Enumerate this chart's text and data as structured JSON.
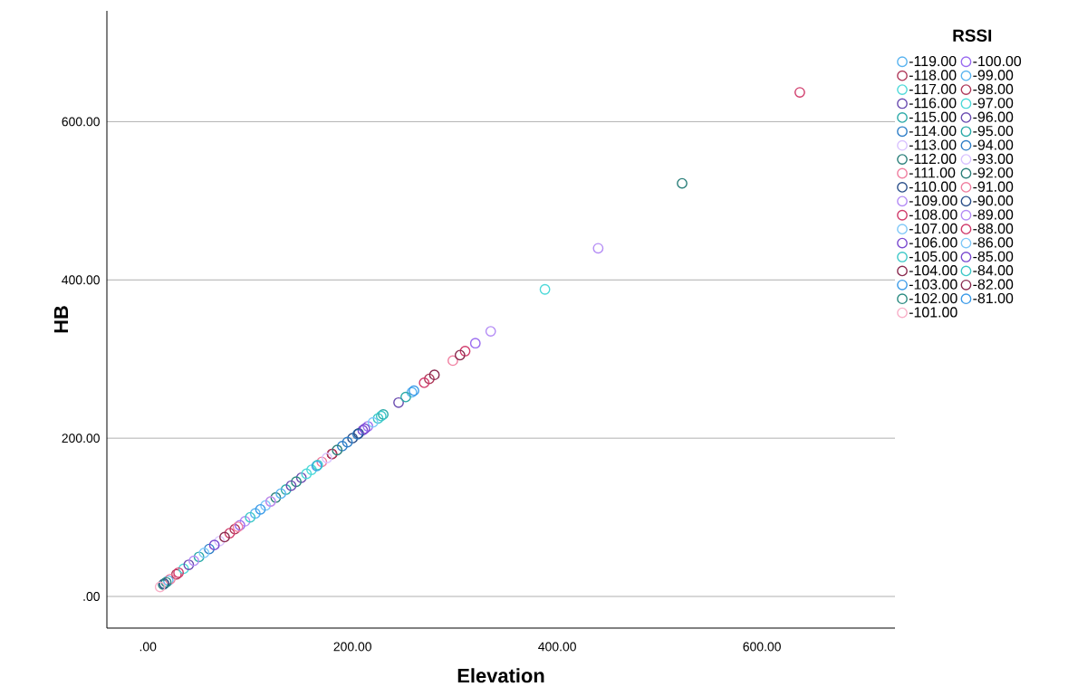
{
  "chart_data": {
    "type": "scatter",
    "xlabel": "Elevation",
    "ylabel": "HB",
    "legend_title": "RSSI",
    "xlim": [
      -40,
      730
    ],
    "ylim": [
      -40,
      740
    ],
    "xticks": [
      {
        "value": 0,
        "label": ".00"
      },
      {
        "value": 200,
        "label": "200.00"
      },
      {
        "value": 400,
        "label": "400.00"
      },
      {
        "value": 600,
        "label": "600.00"
      }
    ],
    "yticks": [
      {
        "value": 0,
        "label": ".00"
      },
      {
        "value": 200,
        "label": "200.00"
      },
      {
        "value": 400,
        "label": "400.00"
      },
      {
        "value": 600,
        "label": "600.00"
      }
    ],
    "grid": "y",
    "legend": "right",
    "marker": "circle",
    "series": [
      {
        "name": "-119.00",
        "color": "#5ab4f0",
        "x": [
          20,
          105
        ],
        "values": [
          20,
          105
        ]
      },
      {
        "name": "-118.00",
        "color": "#b03a5b",
        "x": [
          28,
          85
        ],
        "values": [
          28,
          85
        ]
      },
      {
        "name": "-117.00",
        "color": "#4dd9d9",
        "x": [
          35,
          160
        ],
        "values": [
          35,
          160
        ]
      },
      {
        "name": "-116.00",
        "color": "#6a4cb0",
        "x": [
          40,
          150
        ],
        "values": [
          40,
          150
        ]
      },
      {
        "name": "-115.00",
        "color": "#2aaaa8",
        "x": [
          50,
          135
        ],
        "values": [
          50,
          135
        ]
      },
      {
        "name": "-114.00",
        "color": "#2f7fc8",
        "x": [
          60,
          190
        ],
        "values": [
          60,
          190
        ]
      },
      {
        "name": "-113.00",
        "color": "#d9c2ff",
        "x": [
          70
        ],
        "values": [
          70
        ]
      },
      {
        "name": "-112.00",
        "color": "#2a7f7a",
        "x": [
          15,
          125
        ],
        "values": [
          15,
          125
        ]
      },
      {
        "name": "-111.00",
        "color": "#f07fa0",
        "x": [
          22,
          170
        ],
        "values": [
          22,
          170
        ]
      },
      {
        "name": "-110.00",
        "color": "#2a4f8a",
        "x": [
          16,
          200
        ],
        "values": [
          16,
          200
        ]
      },
      {
        "name": "-109.00",
        "color": "#b48cf5",
        "x": [
          45,
          95
        ],
        "values": [
          45,
          95
        ]
      },
      {
        "name": "-108.00",
        "color": "#d03a6a",
        "x": [
          30,
          80
        ],
        "values": [
          30,
          80
        ]
      },
      {
        "name": "-107.00",
        "color": "#7fc8f8",
        "x": [
          55,
          115
        ],
        "values": [
          55,
          115
        ]
      },
      {
        "name": "-106.00",
        "color": "#7a4ad0",
        "x": [
          65,
          210
        ],
        "values": [
          65,
          210
        ]
      },
      {
        "name": "-105.00",
        "color": "#3cc8c8",
        "x": [
          100,
          225
        ],
        "values": [
          100,
          225
        ]
      },
      {
        "name": "-104.00",
        "color": "#8a2a4f",
        "x": [
          75,
          180
        ],
        "values": [
          75,
          180
        ]
      },
      {
        "name": "-103.00",
        "color": "#3a9ae8",
        "x": [
          110,
          165
        ],
        "values": [
          110,
          165
        ]
      },
      {
        "name": "-102.00",
        "color": "#2a8a80",
        "x": [
          18,
          145
        ],
        "values": [
          18,
          145
        ]
      },
      {
        "name": "-101.00",
        "color": "#f8b0c8",
        "x": [
          12,
          120
        ],
        "values": [
          12,
          120
        ]
      },
      {
        "name": "-100.00",
        "color": "#9a6cf0",
        "x": [
          90,
          215,
          320
        ],
        "values": [
          90,
          215,
          320
        ]
      },
      {
        "name": "-99.00",
        "color": "#5ab4f0",
        "x": [
          130,
          258
        ],
        "values": [
          130,
          258
        ]
      },
      {
        "name": "-98.00",
        "color": "#b03a5b",
        "x": [
          180,
          275
        ],
        "values": [
          180,
          275
        ]
      },
      {
        "name": "-97.00",
        "color": "#4dd9d9",
        "x": [
          155,
          388
        ],
        "values": [
          155,
          388
        ]
      },
      {
        "name": "-96.00",
        "color": "#6a4cb0",
        "x": [
          140,
          245
        ],
        "values": [
          140,
          245
        ]
      },
      {
        "name": "-95.00",
        "color": "#2aaaa8",
        "x": [
          230,
          252
        ],
        "values": [
          230,
          252
        ]
      },
      {
        "name": "-94.00",
        "color": "#2f7fc8",
        "x": [
          195,
          205
        ],
        "values": [
          195,
          205
        ]
      },
      {
        "name": "-93.00",
        "color": "#d9c2ff",
        "x": [
          175
        ],
        "values": [
          175
        ]
      },
      {
        "name": "-92.00",
        "color": "#2a7f7a",
        "x": [
          185,
          522
        ],
        "values": [
          185,
          522
        ]
      },
      {
        "name": "-91.00",
        "color": "#f07fa0",
        "x": [
          88,
          298
        ],
        "values": [
          88,
          298
        ]
      },
      {
        "name": "-90.00",
        "color": "#2a4f8a",
        "x": [
          206
        ],
        "values": [
          206
        ]
      },
      {
        "name": "-89.00",
        "color": "#b48cf5",
        "x": [
          120,
          335,
          440
        ],
        "values": [
          120,
          335,
          440
        ]
      },
      {
        "name": "-88.00",
        "color": "#d03a6a",
        "x": [
          270,
          310,
          637
        ],
        "values": [
          270,
          310,
          637
        ]
      },
      {
        "name": "-86.00",
        "color": "#7fc8f8",
        "x": [
          220
        ],
        "values": [
          220
        ]
      },
      {
        "name": "-85.00",
        "color": "#7a4ad0",
        "x": [
          212
        ],
        "values": [
          212
        ]
      },
      {
        "name": "-84.00",
        "color": "#3cc8c8",
        "x": [
          166,
          228
        ],
        "values": [
          166,
          228
        ]
      },
      {
        "name": "-82.00",
        "color": "#8a2a4f",
        "x": [
          280,
          305
        ],
        "values": [
          280,
          305
        ]
      },
      {
        "name": "-81.00",
        "color": "#3a9ae8",
        "x": [
          260
        ],
        "values": [
          260
        ]
      }
    ]
  }
}
